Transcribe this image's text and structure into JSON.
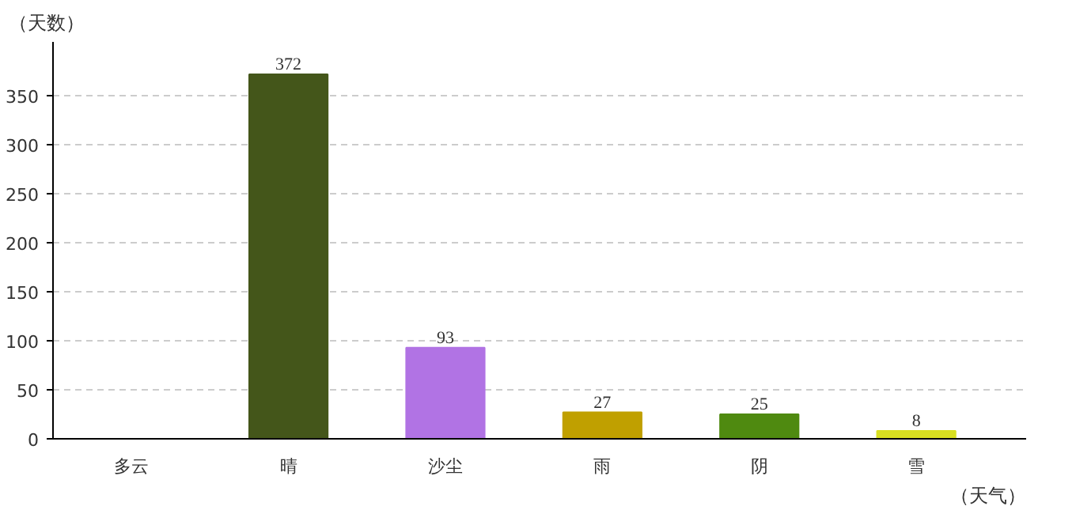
{
  "chart_data": {
    "type": "bar",
    "xlabel": "（天气）",
    "ylabel": "（天数）",
    "categories": [
      "多云",
      "晴",
      "沙尘",
      "雨",
      "阴",
      "雪"
    ],
    "values": [
      null,
      372,
      93,
      27,
      25,
      8
    ],
    "colors": [
      "#7f2415",
      "#44561a",
      "#b173e4",
      "#c0a000",
      "#4f8a10",
      "#d9e021"
    ],
    "value_labels": [
      null,
      "372",
      "93",
      "27",
      "25",
      "8"
    ],
    "ylim": [
      0,
      405
    ],
    "yticks": [
      0,
      50,
      100,
      150,
      200,
      250,
      300,
      350
    ],
    "grid": "y"
  }
}
